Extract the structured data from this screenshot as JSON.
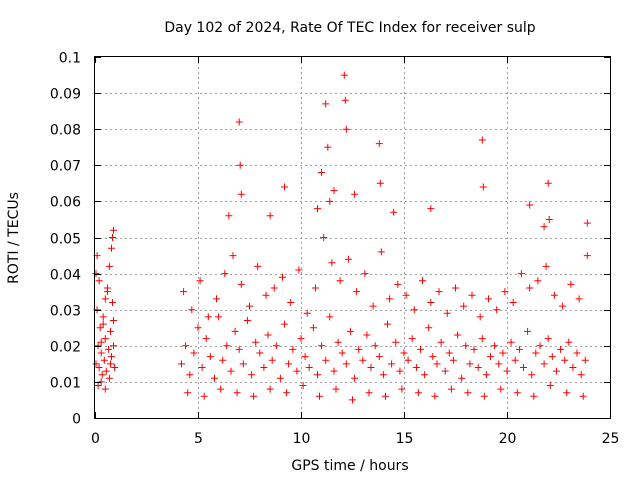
{
  "chart_data": {
    "type": "scatter",
    "title": "Day 102 of 2024, Rate Of TEC Index for receiver sulp",
    "xlabel": "GPS time / hours",
    "ylabel": "ROTI / TECUs",
    "xlim": [
      0,
      25
    ],
    "ylim": [
      0,
      0.1
    ],
    "xticks": [
      0,
      5,
      10,
      15,
      20,
      25
    ],
    "xtick_labels": [
      "0",
      "5",
      "10",
      "15",
      "20",
      "25"
    ],
    "yticks": [
      0,
      0.01,
      0.02,
      0.03,
      0.04,
      0.05,
      0.06,
      0.07,
      0.08,
      0.09,
      0.1
    ],
    "ytick_labels": [
      "0",
      "0.01",
      "0.02",
      "0.03",
      "0.04",
      "0.05",
      "0.06",
      "0.07",
      "0.08",
      "0.09",
      "0.1"
    ],
    "grid": true,
    "marker": "+",
    "color": "#ff0000",
    "series": [
      {
        "x": [
          0.05,
          0.1,
          0.15,
          0.2,
          0.25,
          0.3,
          0.35,
          0.4,
          0.45,
          0.5,
          0.55,
          0.6,
          0.65,
          0.7,
          0.75,
          0.8,
          0.85,
          0.9,
          0.95,
          0.1,
          0.2,
          0.3,
          0.5,
          0.7,
          0.85,
          0.9,
          0.05,
          0.15,
          0.4,
          0.6,
          0.8,
          0.3,
          0.5,
          0.75,
          0.9,
          4.2,
          4.4,
          4.6,
          4.8,
          5.0,
          5.2,
          5.4,
          5.6,
          5.8,
          6.0,
          6.2,
          6.4,
          6.6,
          6.8,
          7.0,
          7.2,
          7.4,
          7.6,
          7.8,
          8.0,
          8.2,
          8.4,
          8.6,
          8.8,
          9.0,
          9.2,
          9.4,
          9.6,
          9.8,
          10.0,
          10.2,
          10.4,
          10.6,
          10.8,
          11.0,
          11.2,
          11.4,
          11.6,
          11.8,
          12.0,
          12.2,
          12.4,
          12.6,
          12.8,
          13.0,
          13.2,
          13.4,
          13.6,
          13.8,
          14.0,
          14.2,
          14.4,
          14.6,
          14.8,
          15.0,
          15.2,
          15.4,
          15.6,
          15.8,
          16.0,
          16.2,
          16.4,
          16.6,
          16.8,
          17.0,
          17.2,
          17.4,
          17.6,
          17.8,
          18.0,
          18.2,
          18.4,
          18.6,
          18.8,
          19.0,
          19.2,
          19.4,
          19.6,
          19.8,
          20.0,
          20.2,
          20.4,
          20.6,
          20.8,
          21.0,
          21.2,
          21.4,
          21.6,
          21.8,
          22.0,
          22.2,
          22.4,
          22.6,
          22.8,
          23.0,
          23.2,
          23.4,
          23.6,
          23.8,
          4.3,
          4.7,
          5.1,
          5.5,
          5.9,
          6.3,
          6.7,
          7.1,
          7.5,
          7.9,
          8.3,
          8.7,
          9.1,
          9.5,
          9.9,
          10.3,
          10.7,
          11.1,
          11.5,
          11.9,
          12.3,
          12.7,
          13.1,
          13.5,
          13.9,
          14.3,
          14.7,
          15.1,
          15.5,
          15.9,
          16.3,
          16.7,
          17.1,
          17.5,
          17.9,
          18.3,
          18.7,
          19.1,
          19.5,
          19.9,
          20.3,
          20.7,
          21.1,
          21.5,
          21.9,
          22.3,
          22.7,
          23.1,
          23.5,
          23.9,
          4.5,
          5.3,
          6.1,
          6.9,
          7.7,
          8.5,
          9.3,
          10.1,
          10.9,
          11.7,
          12.5,
          13.3,
          14.1,
          14.9,
          15.7,
          16.5,
          17.3,
          18.1,
          18.9,
          19.7,
          20.5,
          21.3,
          22.1,
          22.9,
          23.7,
          7.0,
          7.05,
          7.1,
          11.2,
          11.3,
          11.4,
          12.1,
          12.15,
          12.2,
          13.8,
          13.85,
          18.8,
          18.85,
          22.0,
          22.05,
          23.9,
          6.5,
          8.5,
          9.2,
          10.8,
          11.0,
          11.6,
          12.6,
          14.5,
          16.3,
          21.1,
          21.8
        ],
        "y": [
          0.015,
          0.03,
          0.02,
          0.014,
          0.025,
          0.018,
          0.012,
          0.028,
          0.016,
          0.022,
          0.013,
          0.035,
          0.019,
          0.011,
          0.024,
          0.017,
          0.032,
          0.02,
          0.014,
          0.045,
          0.038,
          0.01,
          0.008,
          0.042,
          0.05,
          0.052,
          0.04,
          0.009,
          0.026,
          0.036,
          0.047,
          0.021,
          0.033,
          0.015,
          0.027,
          0.015,
          0.02,
          0.012,
          0.018,
          0.025,
          0.014,
          0.022,
          0.017,
          0.011,
          0.028,
          0.016,
          0.02,
          0.013,
          0.024,
          0.019,
          0.015,
          0.027,
          0.012,
          0.021,
          0.018,
          0.014,
          0.023,
          0.016,
          0.02,
          0.011,
          0.026,
          0.015,
          0.019,
          0.013,
          0.022,
          0.017,
          0.014,
          0.025,
          0.012,
          0.02,
          0.016,
          0.028,
          0.013,
          0.021,
          0.018,
          0.015,
          0.024,
          0.011,
          0.019,
          0.016,
          0.023,
          0.014,
          0.02,
          0.017,
          0.012,
          0.026,
          0.015,
          0.021,
          0.013,
          0.018,
          0.016,
          0.022,
          0.014,
          0.019,
          0.012,
          0.025,
          0.017,
          0.015,
          0.021,
          0.013,
          0.018,
          0.016,
          0.023,
          0.011,
          0.02,
          0.015,
          0.019,
          0.014,
          0.022,
          0.012,
          0.017,
          0.02,
          0.015,
          0.018,
          0.013,
          0.021,
          0.016,
          0.019,
          0.014,
          0.024,
          0.012,
          0.018,
          0.02,
          0.015,
          0.022,
          0.017,
          0.013,
          0.019,
          0.016,
          0.021,
          0.014,
          0.018,
          0.012,
          0.016,
          0.035,
          0.03,
          0.038,
          0.028,
          0.033,
          0.04,
          0.045,
          0.037,
          0.031,
          0.042,
          0.034,
          0.036,
          0.039,
          0.032,
          0.041,
          0.029,
          0.036,
          0.05,
          0.043,
          0.038,
          0.044,
          0.035,
          0.04,
          0.031,
          0.046,
          0.033,
          0.037,
          0.034,
          0.03,
          0.038,
          0.032,
          0.035,
          0.029,
          0.036,
          0.031,
          0.034,
          0.028,
          0.033,
          0.03,
          0.035,
          0.032,
          0.04,
          0.036,
          0.038,
          0.042,
          0.034,
          0.031,
          0.037,
          0.033,
          0.045,
          0.007,
          0.006,
          0.008,
          0.007,
          0.006,
          0.008,
          0.007,
          0.009,
          0.006,
          0.008,
          0.005,
          0.007,
          0.006,
          0.008,
          0.007,
          0.006,
          0.008,
          0.007,
          0.006,
          0.008,
          0.007,
          0.006,
          0.009,
          0.007,
          0.006,
          0.082,
          0.07,
          0.062,
          0.087,
          0.075,
          0.06,
          0.095,
          0.088,
          0.08,
          0.076,
          0.065,
          0.077,
          0.064,
          0.065,
          0.055,
          0.054,
          0.056,
          0.056,
          0.064,
          0.058,
          0.068,
          0.063,
          0.062,
          0.057,
          0.058,
          0.059,
          0.053
        ]
      }
    ]
  }
}
